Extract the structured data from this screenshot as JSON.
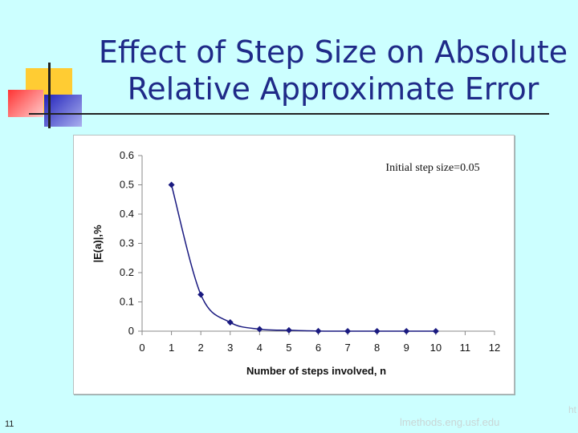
{
  "slide": {
    "title_line1": "Effect of Step Size on Absolute",
    "title_line2": "Relative Approximate Error",
    "page_number": "11",
    "footer_url": "lmethods.eng.usf.edu",
    "footer_cut": "ht"
  },
  "colors": {
    "background": "#ccffff",
    "title": "#1f2a88",
    "series": "#1a1a80",
    "deco_yellow": "#ffcc33",
    "deco_red": "#ff3333",
    "deco_blue": "#3333cc"
  },
  "chart_data": {
    "type": "line",
    "annotation": "Initial step size=0.05",
    "xlabel": "Number of steps involved, n",
    "ylabel": "|E(a)|,%",
    "xlim": [
      0,
      12
    ],
    "ylim": [
      0,
      0.6
    ],
    "xticks": [
      "0",
      "1",
      "2",
      "3",
      "4",
      "5",
      "6",
      "7",
      "8",
      "9",
      "10",
      "11",
      "12"
    ],
    "yticks": [
      "0",
      "0.1",
      "0.2",
      "0.3",
      "0.4",
      "0.5",
      "0.6"
    ],
    "grid": false,
    "legend": "none",
    "series": [
      {
        "x": [
          1,
          2,
          3,
          4,
          5,
          6,
          7,
          8,
          9,
          10
        ],
        "y": [
          0.5,
          0.125,
          0.03,
          0.007,
          0.003,
          0.0005,
          0.0001,
          0.0001,
          0.0001,
          0.0001
        ]
      }
    ]
  }
}
